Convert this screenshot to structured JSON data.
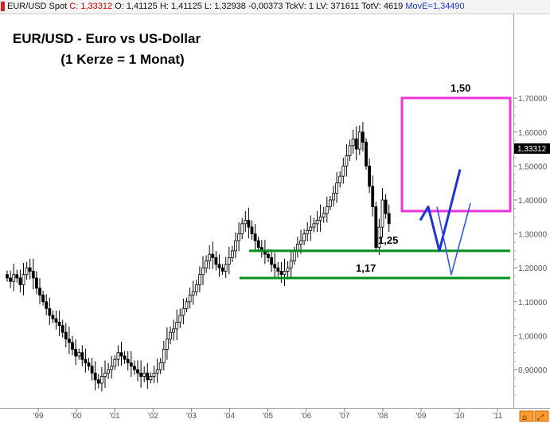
{
  "header": {
    "symbol": "EUR/USD Spot",
    "close": "C: 1,33312",
    "open": "O: 1,41125",
    "high": "H: 1,41125",
    "low": "L: 1,32938",
    "change": "-0,00373",
    "tick_vol": "TckV: 1",
    "lv": "LV: 371611",
    "totv": "TotV: 4619",
    "move": "MovE=1,34490"
  },
  "chart_data": {
    "type": "candlestick",
    "title": "EUR/USD - Euro vs US-Dollar",
    "subtitle": "(1 Kerze = 1 Monat)",
    "ylim": [
      0.82,
      1.74
    ],
    "y_ticks": [
      "1,70000",
      "1,60000",
      "1,50000",
      "1,40000",
      "1,30000",
      "1,20000",
      "1,10000",
      "1,00000",
      "0,90000"
    ],
    "x_ticks": [
      "'99",
      "'00",
      "'01",
      "'02",
      "'03",
      "'04",
      "'05",
      "'06",
      "'07",
      "'08",
      "'09",
      "'10",
      "'11"
    ],
    "last_price_label": "1,33312",
    "closes": [
      1.17,
      1.16,
      1.18,
      1.17,
      1.15,
      1.18,
      1.2,
      1.19,
      1.17,
      1.14,
      1.12,
      1.1,
      1.08,
      1.06,
      1.05,
      1.04,
      1.03,
      1.01,
      0.99,
      0.98,
      0.96,
      0.94,
      0.95,
      0.93,
      0.92,
      0.91,
      0.89,
      0.87,
      0.86,
      0.88,
      0.89,
      0.9,
      0.91,
      0.93,
      0.95,
      0.94,
      0.93,
      0.92,
      0.91,
      0.9,
      0.89,
      0.88,
      0.89,
      0.87,
      0.88,
      0.89,
      0.9,
      0.92,
      0.96,
      0.99,
      1.01,
      1.02,
      1.04,
      1.06,
      1.08,
      1.1,
      1.12,
      1.13,
      1.15,
      1.18,
      1.2,
      1.22,
      1.24,
      1.23,
      1.21,
      1.2,
      1.19,
      1.21,
      1.23,
      1.25,
      1.28,
      1.3,
      1.33,
      1.34,
      1.32,
      1.3,
      1.28,
      1.26,
      1.25,
      1.24,
      1.23,
      1.21,
      1.2,
      1.19,
      1.18,
      1.19,
      1.2,
      1.22,
      1.25,
      1.27,
      1.28,
      1.3,
      1.31,
      1.32,
      1.33,
      1.34,
      1.35,
      1.36,
      1.38,
      1.4,
      1.42,
      1.45,
      1.47,
      1.5,
      1.53,
      1.56,
      1.58,
      1.55,
      1.6,
      1.57,
      1.5,
      1.44,
      1.38,
      1.26,
      1.32,
      1.4,
      1.36,
      1.33
    ],
    "annotations": {
      "levels": [
        {
          "label": "1,25",
          "value": 1.25
        },
        {
          "label": "1,17",
          "value": 1.17
        }
      ],
      "target_label": "1,50",
      "projection_dark": [
        [
          1.34,
          1.38,
          1.25,
          1.49
        ]
      ],
      "projection_light": [
        [
          1.38,
          1.18,
          1.39
        ]
      ]
    },
    "colors": {
      "candle": "#000000",
      "support": "#00901a",
      "box": "#ee33dd",
      "projection_dark": "#1c35d8",
      "projection_light": "#3355e8"
    }
  }
}
